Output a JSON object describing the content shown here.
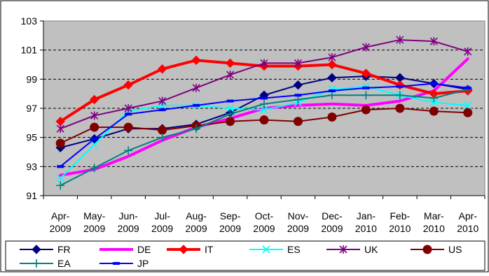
{
  "chart_data": {
    "type": "line",
    "title": "",
    "xlabel": "",
    "ylabel": "",
    "ylim": [
      91,
      103
    ],
    "yticks": [
      91,
      93,
      95,
      97,
      99,
      101,
      103
    ],
    "grid": "horizontal dashed",
    "plot_background": "#c0c0c0",
    "legend_position": "bottom",
    "categories": [
      [
        "Apr-",
        "2009"
      ],
      [
        "May-",
        "2009"
      ],
      [
        "Jun-",
        "2009"
      ],
      [
        "Jul-",
        "2009"
      ],
      [
        "Aug-",
        "2009"
      ],
      [
        "Sep-",
        "2009"
      ],
      [
        "Oct-",
        "2009"
      ],
      [
        "Nov-",
        "2009"
      ],
      [
        "Dec-",
        "2009"
      ],
      [
        "Jan-",
        "2010"
      ],
      [
        "Feb-",
        "2010"
      ],
      [
        "Mar-",
        "2010"
      ],
      [
        "Apr-",
        "2010"
      ]
    ],
    "series": [
      {
        "name": "FR",
        "color": "#000080",
        "marker": "diamond",
        "width": 2,
        "values": [
          94.3,
          94.9,
          95.6,
          95.6,
          95.9,
          96.7,
          97.9,
          98.6,
          99.1,
          99.2,
          99.1,
          98.7,
          98.3
        ]
      },
      {
        "name": "DE",
        "color": "#ff00ff",
        "marker": "none",
        "width": 4,
        "values": [
          92.4,
          92.8,
          93.7,
          94.8,
          95.7,
          96.3,
          97.0,
          97.2,
          97.3,
          97.2,
          97.5,
          98.2,
          100.4
        ]
      },
      {
        "name": "IT",
        "color": "#ff0000",
        "marker": "diamond",
        "width": 4,
        "values": [
          96.1,
          97.6,
          98.6,
          99.7,
          100.3,
          100.1,
          99.9,
          99.9,
          100.0,
          99.4,
          98.6,
          98.0,
          98.2
        ]
      },
      {
        "name": "ES",
        "color": "#00ffff",
        "marker": "x",
        "width": 2,
        "values": [
          92.2,
          94.5,
          96.8,
          97.2,
          97.2,
          97.0,
          96.9,
          97.4,
          98.3,
          98.5,
          97.9,
          97.4,
          97.2
        ]
      },
      {
        "name": "UK",
        "color": "#800080",
        "marker": "star",
        "width": 2,
        "values": [
          95.6,
          96.5,
          97.0,
          97.5,
          98.4,
          99.3,
          100.1,
          100.1,
          100.5,
          101.2,
          101.7,
          101.6,
          100.9
        ]
      },
      {
        "name": "US",
        "color": "#800000",
        "marker": "circle",
        "width": 2,
        "values": [
          94.6,
          95.7,
          95.7,
          95.5,
          95.8,
          96.1,
          96.2,
          96.1,
          96.4,
          96.9,
          97.0,
          96.8,
          96.7
        ]
      },
      {
        "name": "EA",
        "color": "#008080",
        "marker": "plus",
        "width": 2,
        "values": [
          91.7,
          92.9,
          94.1,
          95.0,
          95.6,
          96.6,
          97.3,
          97.6,
          97.9,
          97.9,
          97.9,
          97.7,
          98.3
        ]
      },
      {
        "name": "JP",
        "color": "#0000ff",
        "marker": "dash",
        "width": 2,
        "values": [
          93.0,
          94.9,
          96.6,
          96.9,
          97.2,
          97.5,
          97.7,
          97.9,
          98.2,
          98.4,
          98.5,
          98.7,
          98.4
        ]
      }
    ]
  }
}
